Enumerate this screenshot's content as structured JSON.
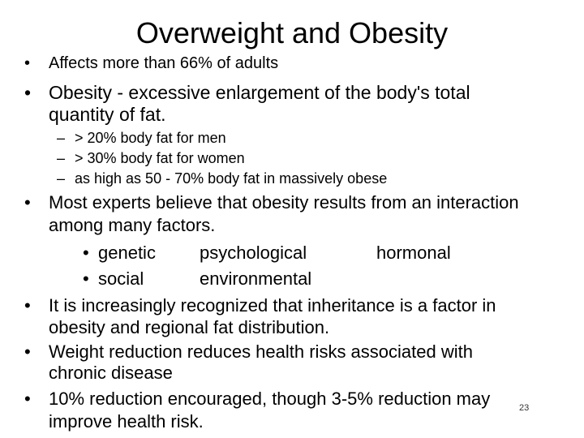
{
  "slide": {
    "title": "Overweight and Obesity",
    "bullet_glyph": "•",
    "dash_glyph": "–",
    "items": [
      {
        "text": "Affects more than 66% of adults"
      },
      {
        "text_line1": "Obesity - excessive enlargement of the body's total",
        "text_line2": "quantity of fat."
      },
      {
        "sub": [
          "> 20% body fat for men",
          "> 30% body fat for women",
          "as high as 50 - 70% body fat in massively obese"
        ]
      },
      {
        "text_line1": "Most experts believe that obesity results from an interaction",
        "text_line2": "among many factors."
      },
      {
        "factors_row1": [
          "genetic",
          "psychological",
          "hormonal"
        ],
        "factors_row2": [
          "social",
          "environmental"
        ]
      },
      {
        "text_line1": "It is increasingly recognized that inheritance is a factor in",
        "text_line2": "obesity and regional fat distribution."
      },
      {
        "text_line1": "Weight reduction reduces health risks associated with",
        "text_line2": "chronic disease"
      },
      {
        "text_line1": "10% reduction encouraged, though 3-5% reduction may",
        "text_line2": "improve health risk."
      }
    ],
    "slide_number": "23"
  }
}
